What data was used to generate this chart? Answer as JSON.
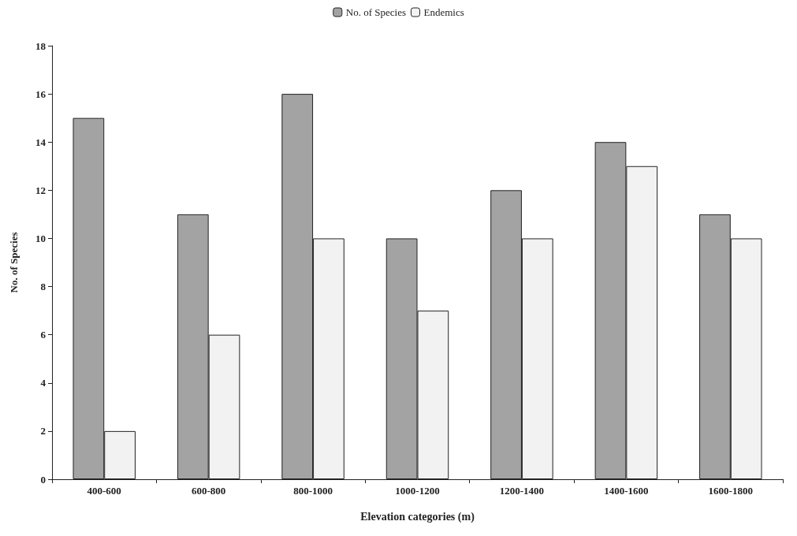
{
  "chart_data": {
    "type": "bar",
    "xlabel": "Elevation categories (m)",
    "ylabel": "No. of Species",
    "categories": [
      "400-600",
      "600-800",
      "800-1000",
      "1000-1200",
      "1200-1400",
      "1400-1600",
      "1600-1800"
    ],
    "series": [
      {
        "name": "No. of Species",
        "color": "#a3a3a3",
        "values": [
          15,
          11,
          16,
          10,
          12,
          14,
          11
        ]
      },
      {
        "name": "Endemics",
        "color": "#f2f2f2",
        "values": [
          2,
          6,
          10,
          7,
          10,
          13,
          10
        ]
      }
    ],
    "ylim": [
      0,
      18
    ],
    "yticks": [
      0,
      2,
      4,
      6,
      8,
      10,
      12,
      14,
      16,
      18
    ],
    "grid": false,
    "legend": "top"
  }
}
